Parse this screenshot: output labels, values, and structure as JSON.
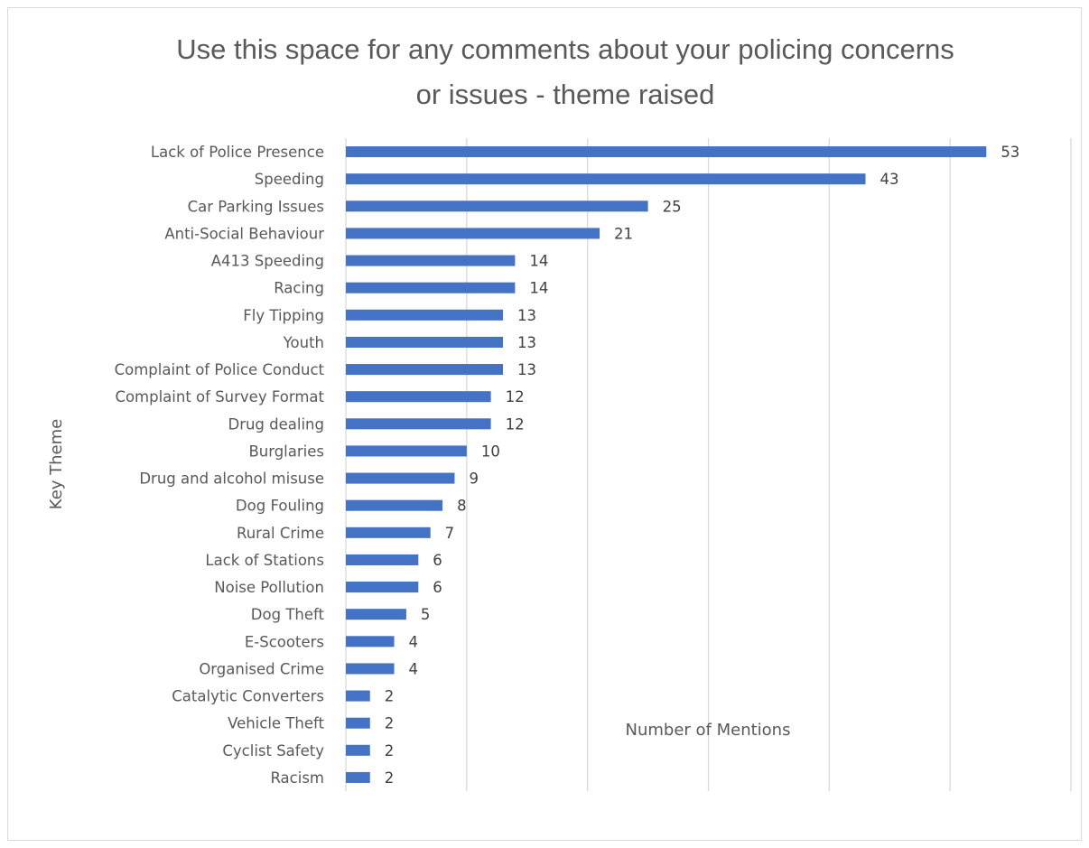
{
  "chart_data": {
    "type": "bar",
    "orientation": "horizontal",
    "title_lines": [
      "Use this space for any comments about your policing concerns",
      "or issues - theme raised"
    ],
    "xlabel": "Number of Mentions",
    "ylabel": "Key Theme",
    "xlim": [
      0,
      60
    ],
    "grid": "vertical gridlines",
    "bar_color": "#4472C4",
    "categories": [
      "Lack of Police Presence",
      "Speeding",
      "Car Parking Issues",
      "Anti-Social Behaviour",
      "A413 Speeding",
      "Racing",
      "Fly Tipping",
      "Youth",
      "Complaint of Police Conduct",
      "Complaint of Survey Format",
      "Drug dealing",
      "Burglaries",
      "Drug and alcohol misuse",
      "Dog Fouling",
      "Rural Crime",
      "Lack of Stations",
      "Noise Pollution",
      "Dog Theft",
      "E-Scooters",
      "Organised Crime",
      "Catalytic Converters",
      "Vehicle Theft",
      "Cyclist Safety",
      "Racism"
    ],
    "values": [
      53,
      43,
      25,
      21,
      14,
      14,
      13,
      13,
      13,
      12,
      12,
      10,
      9,
      8,
      7,
      6,
      6,
      5,
      4,
      4,
      2,
      2,
      2,
      2
    ]
  }
}
